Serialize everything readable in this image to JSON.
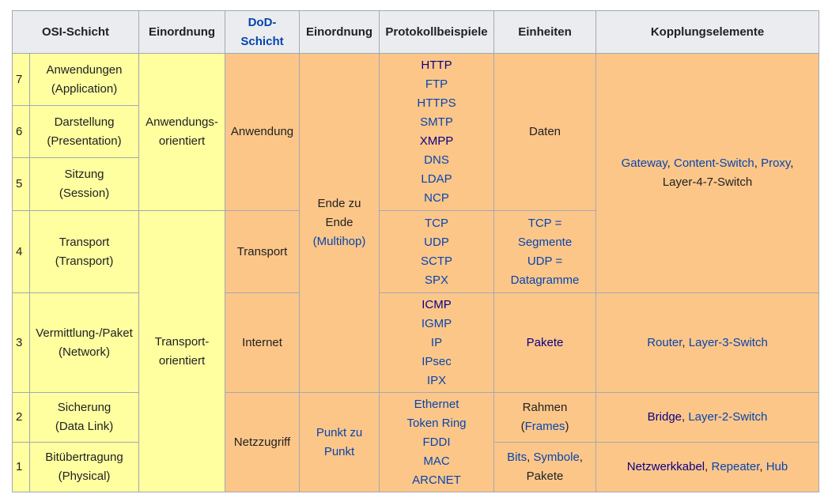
{
  "table": {
    "header": [
      {
        "lines": [
          [
            "OSI-Schicht"
          ]
        ],
        "colspan": 2
      },
      {
        "lines": [
          [
            "Einordnung"
          ]
        ]
      },
      {
        "lines": [
          [
            {
              "link": "DoD-"
            }
          ],
          [
            {
              "link": "Schicht"
            }
          ]
        ]
      },
      {
        "lines": [
          [
            "Einordnung"
          ]
        ]
      },
      {
        "lines": [
          [
            "Protokollbeispiele"
          ]
        ]
      },
      {
        "lines": [
          [
            "Einheiten"
          ]
        ]
      },
      {
        "lines": [
          [
            "Kopplungselemente"
          ]
        ]
      }
    ],
    "rows": [
      [
        {
          "lines": [
            [
              "7"
            ]
          ],
          "color": "#ffffa0",
          "align": "left"
        },
        {
          "lines": [
            [
              "Anwendungen"
            ],
            [
              "(Application)"
            ]
          ],
          "color": "#ffffa0"
        },
        {
          "lines": [
            [
              "Anwendungs-"
            ],
            [
              "orientiert"
            ]
          ],
          "color": "#ffffa0",
          "rowspan": 3
        },
        {
          "lines": [
            [
              "Anwendung"
            ]
          ],
          "color": "#fdc689",
          "rowspan": 3
        },
        {
          "lines": [
            [
              "Ende zu"
            ],
            [
              "Ende"
            ],
            [
              {
                "link": "(Multihop)"
              }
            ]
          ],
          "color": "#fdc689",
          "rowspan": 5
        },
        {
          "lines": [
            [
              {
                "link": "HTTP",
                "visited": true
              }
            ],
            [
              {
                "link": "FTP"
              }
            ],
            [
              {
                "link": "HTTPS"
              }
            ],
            [
              {
                "link": "SMTP"
              }
            ],
            [
              {
                "link": "XMPP",
                "visited": true
              }
            ],
            [
              {
                "link": "DNS"
              }
            ],
            [
              {
                "link": "LDAP"
              }
            ],
            [
              {
                "link": "NCP"
              }
            ]
          ],
          "color": "#fdc689",
          "rowspan": 3
        },
        {
          "lines": [
            [
              "Daten"
            ]
          ],
          "color": "#fdc689",
          "rowspan": 3
        },
        {
          "lines": [
            [
              {
                "link": "Gateway"
              },
              ", ",
              {
                "link": "Content-Switch"
              },
              ", ",
              {
                "link": "Proxy"
              },
              ","
            ],
            [
              "Layer-4-7-Switch"
            ]
          ],
          "color": "#fdc689",
          "rowspan": 4
        }
      ],
      [
        {
          "lines": [
            [
              "6"
            ]
          ],
          "color": "#ffffa0",
          "align": "left"
        },
        {
          "lines": [
            [
              "Darstellung"
            ],
            [
              "(Presentation)"
            ]
          ],
          "color": "#ffffa0"
        }
      ],
      [
        {
          "lines": [
            [
              "5"
            ]
          ],
          "color": "#ffffa0",
          "align": "left"
        },
        {
          "lines": [
            [
              "Sitzung"
            ],
            [
              "(Session)"
            ]
          ],
          "color": "#ffffa0"
        }
      ],
      [
        {
          "lines": [
            [
              "4"
            ]
          ],
          "color": "#ffffa0",
          "align": "left"
        },
        {
          "lines": [
            [
              "Transport"
            ],
            [
              "(Transport)"
            ]
          ],
          "color": "#ffffa0"
        },
        {
          "lines": [
            [
              "Transport-"
            ],
            [
              "orientiert"
            ]
          ],
          "color": "#ffffa0",
          "rowspan": 4
        },
        {
          "lines": [
            [
              "Transport"
            ]
          ],
          "color": "#fdc689"
        },
        {
          "lines": [
            [
              {
                "link": "TCP"
              }
            ],
            [
              {
                "link": "UDP"
              }
            ],
            [
              {
                "link": "SCTP"
              }
            ],
            [
              {
                "link": "SPX"
              }
            ]
          ],
          "color": "#fdc689"
        },
        {
          "lines": [
            [
              {
                "link": "TCP ="
              }
            ],
            [
              {
                "link": "Segmente"
              }
            ],
            [
              {
                "link": "UDP ="
              }
            ],
            [
              {
                "link": "Datagramme"
              }
            ]
          ],
          "color": "#fdc689"
        }
      ],
      [
        {
          "lines": [
            [
              "3"
            ]
          ],
          "color": "#ffffa0",
          "align": "left"
        },
        {
          "lines": [
            [
              "Vermittlung-/Paket"
            ],
            [
              "(Network)"
            ]
          ],
          "color": "#ffffa0"
        },
        {
          "lines": [
            [
              "Internet"
            ]
          ],
          "color": "#fdc689"
        },
        {
          "lines": [
            [
              {
                "link": "ICMP",
                "visited": true
              }
            ],
            [
              {
                "link": "IGMP"
              }
            ],
            [
              {
                "link": "IP"
              }
            ],
            [
              {
                "link": "IPsec"
              }
            ],
            [
              {
                "link": "IPX"
              }
            ]
          ],
          "color": "#fdc689"
        },
        {
          "lines": [
            [
              {
                "link": "Pakete",
                "visited": true
              }
            ]
          ],
          "color": "#fdc689"
        },
        {
          "lines": [
            [
              {
                "link": "Router"
              },
              ", ",
              {
                "link": "Layer-3-Switch"
              }
            ]
          ],
          "color": "#fdc689"
        }
      ],
      [
        {
          "lines": [
            [
              "2"
            ]
          ],
          "color": "#ffffa0",
          "align": "left"
        },
        {
          "lines": [
            [
              "Sicherung"
            ],
            [
              "(Data Link)"
            ]
          ],
          "color": "#ffffa0"
        },
        {
          "lines": [
            [
              "Netzzugriff"
            ]
          ],
          "color": "#fdc689",
          "rowspan": 2
        },
        {
          "lines": [
            [
              {
                "link": "Punkt zu"
              }
            ],
            [
              {
                "link": "Punkt"
              }
            ]
          ],
          "color": "#fdc689",
          "rowspan": 2
        },
        {
          "lines": [
            [
              {
                "link": "Ethernet"
              }
            ],
            [
              {
                "link": "Token Ring"
              }
            ],
            [
              {
                "link": "FDDI"
              }
            ],
            [
              {
                "link": "MAC"
              }
            ],
            [
              {
                "link": "ARCNET"
              }
            ]
          ],
          "color": "#fdc689",
          "rowspan": 2
        },
        {
          "lines": [
            [
              "Rahmen"
            ],
            [
              "(",
              {
                "link": "Frames"
              },
              ")"
            ]
          ],
          "color": "#fdc689"
        },
        {
          "lines": [
            [
              {
                "link": "Bridge",
                "visited": true
              },
              ", ",
              {
                "link": "Layer-2-Switch"
              }
            ]
          ],
          "color": "#fdc689"
        }
      ],
      [
        {
          "lines": [
            [
              "1"
            ]
          ],
          "color": "#ffffa0",
          "align": "left"
        },
        {
          "lines": [
            [
              "Bitübertragung"
            ],
            [
              "(Physical)"
            ]
          ],
          "color": "#ffffa0"
        },
        {
          "lines": [
            [
              {
                "link": "Bits"
              },
              ", ",
              {
                "link": "Symbole"
              },
              ","
            ],
            [
              "Pakete"
            ]
          ],
          "color": "#fdc689"
        },
        {
          "lines": [
            [
              {
                "link": "Netzwerkkabel",
                "visited": true
              },
              ", ",
              {
                "link": "Repeater"
              },
              ", ",
              {
                "link": "Hub"
              }
            ]
          ],
          "color": "#fdc689"
        }
      ]
    ]
  }
}
